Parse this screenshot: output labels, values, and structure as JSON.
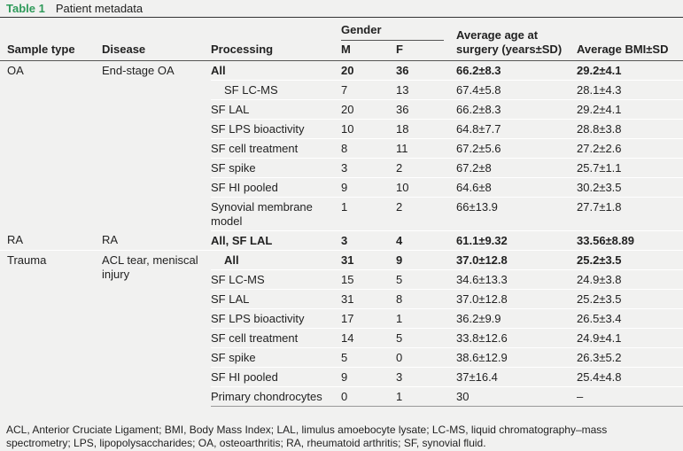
{
  "caption": {
    "label": "Table 1",
    "title": "Patient metadata"
  },
  "header": {
    "sample_type": "Sample type",
    "disease": "Disease",
    "processing": "Processing",
    "gender": "Gender",
    "m": "M",
    "f": "F",
    "age": "Average age at surgery (years±SD)",
    "bmi": "Average BMI±SD"
  },
  "groups": [
    {
      "sample_type": "OA",
      "disease": "End-stage OA",
      "rows": [
        {
          "processing": "All",
          "m": 20,
          "f": 36,
          "age": "66.2±8.3",
          "bmi": "29.2±4.1",
          "bold": true
        },
        {
          "processing": "SF LC-MS",
          "m": 7,
          "f": 13,
          "age": "67.4±5.8",
          "bmi": "28.1±4.3",
          "indent": true
        },
        {
          "processing": "SF LAL",
          "m": 20,
          "f": 36,
          "age": "66.2±8.3",
          "bmi": "29.2±4.1"
        },
        {
          "processing": "SF LPS bioactivity",
          "m": 10,
          "f": 18,
          "age": "64.8±7.7",
          "bmi": "28.8±3.8"
        },
        {
          "processing": "SF cell treatment",
          "m": 8,
          "f": 11,
          "age": "67.2±5.6",
          "bmi": "27.2±2.6"
        },
        {
          "processing": "SF spike",
          "m": 3,
          "f": 2,
          "age": "67.2±8",
          "bmi": "25.7±1.1"
        },
        {
          "processing": "SF HI pooled",
          "m": 9,
          "f": 10,
          "age": "64.6±8",
          "bmi": "30.2±3.5"
        },
        {
          "processing": "Synovial membrane model",
          "m": 1,
          "f": 2,
          "age": "66±13.9",
          "bmi": "27.7±1.8"
        }
      ]
    },
    {
      "sample_type": "RA",
      "disease": "RA",
      "rows": [
        {
          "processing": "All, SF LAL",
          "m": 3,
          "f": 4,
          "age": "61.1±9.32",
          "bmi": "33.56±8.89",
          "bold": true
        }
      ]
    },
    {
      "sample_type": "Trauma",
      "disease": "ACL tear, meniscal injury",
      "rows": [
        {
          "processing": "All",
          "m": 31,
          "f": 9,
          "age": "37.0±12.8",
          "bmi": "25.2±3.5",
          "bold": true,
          "indent": true
        },
        {
          "processing": "SF LC-MS",
          "m": 15,
          "f": 5,
          "age": "34.6±13.3",
          "bmi": "24.9±3.8"
        },
        {
          "processing": "SF LAL",
          "m": 31,
          "f": 8,
          "age": "37.0±12.8",
          "bmi": "25.2±3.5"
        },
        {
          "processing": "SF LPS bioactivity",
          "m": 17,
          "f": 1,
          "age": "36.2±9.9",
          "bmi": "26.5±3.4"
        },
        {
          "processing": "SF cell treatment",
          "m": 14,
          "f": 5,
          "age": "33.8±12.6",
          "bmi": "24.9±4.1"
        },
        {
          "processing": "SF spike",
          "m": 5,
          "f": 0,
          "age": "38.6±12.9",
          "bmi": "26.3±5.2"
        },
        {
          "processing": "SF HI pooled",
          "m": 9,
          "f": 3,
          "age": "37±16.4",
          "bmi": "25.4±4.8"
        },
        {
          "processing": "Primary chondrocytes",
          "m": 0,
          "f": 1,
          "age": "30",
          "bmi": "–"
        }
      ]
    }
  ],
  "footnote": "ACL, Anterior Cruciate Ligament; BMI, Body Mass Index; LAL, limulus amoebocyte lysate; LC-MS, liquid chromatography–mass spectrometry; LPS, lipopolysaccharides; OA, osteoarthritis; RA, rheumatoid arthritis; SF, synovial fluid."
}
